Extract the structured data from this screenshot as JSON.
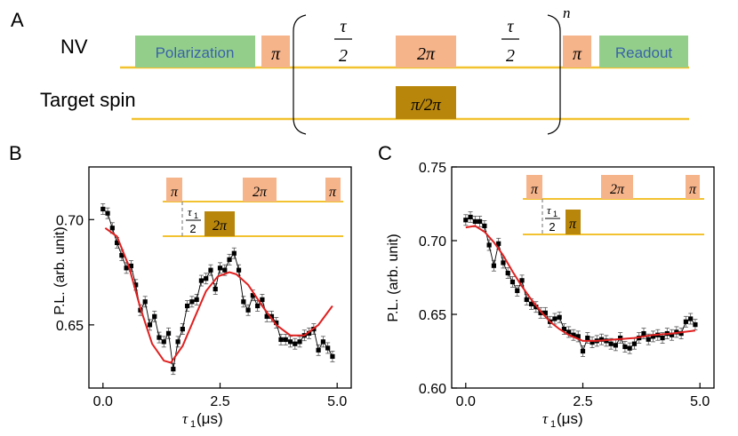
{
  "figure": {
    "panel_a": {
      "label": "A",
      "nv_label": "NV",
      "target_label": "Target spin",
      "polarization": "Polarization",
      "readout": "Readout",
      "pi": "π",
      "two_pi": "2π",
      "tau_num": "τ",
      "tau_den": "2",
      "repeat_n": "n",
      "pi_over_2pi": "π/2π"
    },
    "panel_b": {
      "label": "B",
      "inset": {
        "pi": "π",
        "two_pi": "2π",
        "tau1": "τ",
        "tau1_sub": "1",
        "den": "2"
      }
    },
    "panel_c": {
      "label": "C",
      "inset": {
        "pi": "π",
        "two_pi": "2π",
        "tau1": "τ",
        "tau1_sub": "1",
        "den": "2"
      }
    },
    "colors": {
      "green": "#93cf8b",
      "salmon": "#f6b48b",
      "gold": "#b8860b",
      "line": "#f2c230",
      "fit": "#e02020",
      "text_blue": "#3a62a8"
    }
  },
  "chart_data": [
    {
      "type": "scatter",
      "panel": "B",
      "xlabel_sym": "τ",
      "xlabel_sub": "1",
      "xlabel_unit": " (μs)",
      "ylabel": "P.L. (arb. unit)",
      "xlim": [
        -0.3,
        5.3
      ],
      "ylim": [
        0.62,
        0.725
      ],
      "xticks": [
        0.0,
        2.5,
        5.0
      ],
      "xtick_labels": [
        "0.0",
        "2.5",
        "5.0"
      ],
      "yticks": [
        0.65,
        0.7
      ],
      "ytick_labels": [
        "0.65",
        "0.70"
      ],
      "x": [
        0.0,
        0.1,
        0.2,
        0.3,
        0.4,
        0.5,
        0.6,
        0.7,
        0.8,
        0.9,
        1.0,
        1.1,
        1.2,
        1.3,
        1.4,
        1.5,
        1.6,
        1.7,
        1.8,
        1.9,
        2.0,
        2.1,
        2.2,
        2.3,
        2.4,
        2.5,
        2.6,
        2.7,
        2.8,
        2.9,
        3.0,
        3.1,
        3.2,
        3.3,
        3.4,
        3.5,
        3.6,
        3.7,
        3.8,
        3.9,
        4.0,
        4.1,
        4.2,
        4.3,
        4.4,
        4.5,
        4.6,
        4.7,
        4.8,
        4.9
      ],
      "y": [
        0.705,
        0.703,
        0.696,
        0.689,
        0.683,
        0.677,
        0.678,
        0.669,
        0.657,
        0.661,
        0.65,
        0.654,
        0.644,
        0.642,
        0.646,
        0.629,
        0.642,
        0.648,
        0.659,
        0.661,
        0.662,
        0.671,
        0.672,
        0.676,
        0.667,
        0.677,
        0.676,
        0.681,
        0.684,
        0.676,
        0.661,
        0.657,
        0.664,
        0.659,
        0.662,
        0.654,
        0.654,
        0.651,
        0.643,
        0.643,
        0.642,
        0.641,
        0.642,
        0.645,
        0.646,
        0.648,
        0.638,
        0.642,
        0.639,
        0.635
      ],
      "fit": {
        "x": [
          0.05,
          0.3,
          0.55,
          0.8,
          1.05,
          1.3,
          1.45,
          1.7,
          1.95,
          2.2,
          2.45,
          2.7,
          2.85,
          3.1,
          3.4,
          3.7,
          4.0,
          4.3,
          4.6,
          4.9
        ],
        "y": [
          0.696,
          0.692,
          0.678,
          0.658,
          0.641,
          0.633,
          0.632,
          0.64,
          0.653,
          0.666,
          0.673,
          0.675,
          0.674,
          0.669,
          0.659,
          0.65,
          0.645,
          0.645,
          0.65,
          0.659
        ]
      }
    },
    {
      "type": "scatter",
      "panel": "C",
      "xlabel_sym": "τ",
      "xlabel_sub": "1",
      "xlabel_unit": " (μs)",
      "ylabel": "P.L. (arb. unit)",
      "xlim": [
        -0.3,
        5.3
      ],
      "ylim": [
        0.6,
        0.75
      ],
      "xticks": [
        0.0,
        2.5,
        5.0
      ],
      "xtick_labels": [
        "0.0",
        "2.5",
        "5.0"
      ],
      "yticks": [
        0.6,
        0.65,
        0.7,
        0.75
      ],
      "ytick_labels": [
        "0.60",
        "0.65",
        "0.70",
        "0.75"
      ],
      "x": [
        0.0,
        0.1,
        0.2,
        0.3,
        0.4,
        0.5,
        0.6,
        0.7,
        0.8,
        0.9,
        1.0,
        1.1,
        1.2,
        1.3,
        1.4,
        1.5,
        1.6,
        1.7,
        1.8,
        1.9,
        2.0,
        2.1,
        2.2,
        2.3,
        2.4,
        2.5,
        2.6,
        2.7,
        2.8,
        2.9,
        3.0,
        3.1,
        3.2,
        3.3,
        3.4,
        3.5,
        3.6,
        3.7,
        3.8,
        3.9,
        4.0,
        4.1,
        4.2,
        4.3,
        4.4,
        4.5,
        4.6,
        4.7,
        4.8,
        4.9
      ],
      "y": [
        0.714,
        0.716,
        0.713,
        0.713,
        0.71,
        0.697,
        0.683,
        0.698,
        0.685,
        0.678,
        0.672,
        0.666,
        0.673,
        0.66,
        0.657,
        0.655,
        0.651,
        0.651,
        0.645,
        0.647,
        0.648,
        0.64,
        0.638,
        0.636,
        0.635,
        0.625,
        0.634,
        0.631,
        0.632,
        0.633,
        0.632,
        0.63,
        0.629,
        0.634,
        0.628,
        0.627,
        0.63,
        0.634,
        0.637,
        0.633,
        0.635,
        0.636,
        0.634,
        0.637,
        0.636,
        0.638,
        0.637,
        0.645,
        0.647,
        0.643
      ],
      "fit": {
        "x": [
          0.0,
          0.2,
          0.4,
          0.6,
          0.8,
          1.0,
          1.2,
          1.4,
          1.6,
          1.8,
          2.0,
          2.2,
          2.5,
          2.8,
          3.2,
          3.6,
          4.0,
          4.4,
          4.9
        ],
        "y": [
          0.709,
          0.71,
          0.706,
          0.699,
          0.69,
          0.679,
          0.669,
          0.66,
          0.652,
          0.645,
          0.64,
          0.636,
          0.632,
          0.632,
          0.633,
          0.634,
          0.636,
          0.637,
          0.639
        ]
      }
    }
  ]
}
